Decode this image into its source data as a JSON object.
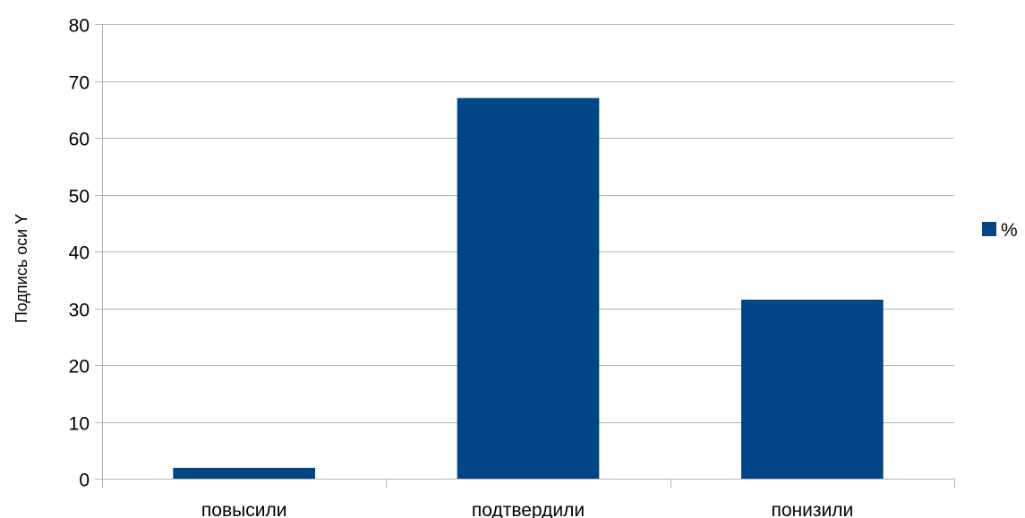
{
  "chart_data": {
    "type": "bar",
    "categories": [
      "повысили",
      "подтвердили",
      "понизили"
    ],
    "series": [
      {
        "name": "%",
        "values": [
          1.9,
          67.0,
          31.5
        ],
        "color": "#004586"
      }
    ],
    "title": "",
    "xlabel": "",
    "ylabel": "Подпись оси Y",
    "ylim": [
      0,
      80
    ],
    "yticks": [
      0,
      10,
      20,
      30,
      40,
      50,
      60,
      70,
      80
    ],
    "grid": true,
    "gridColor": "#b3b3b3",
    "legend": "right"
  }
}
